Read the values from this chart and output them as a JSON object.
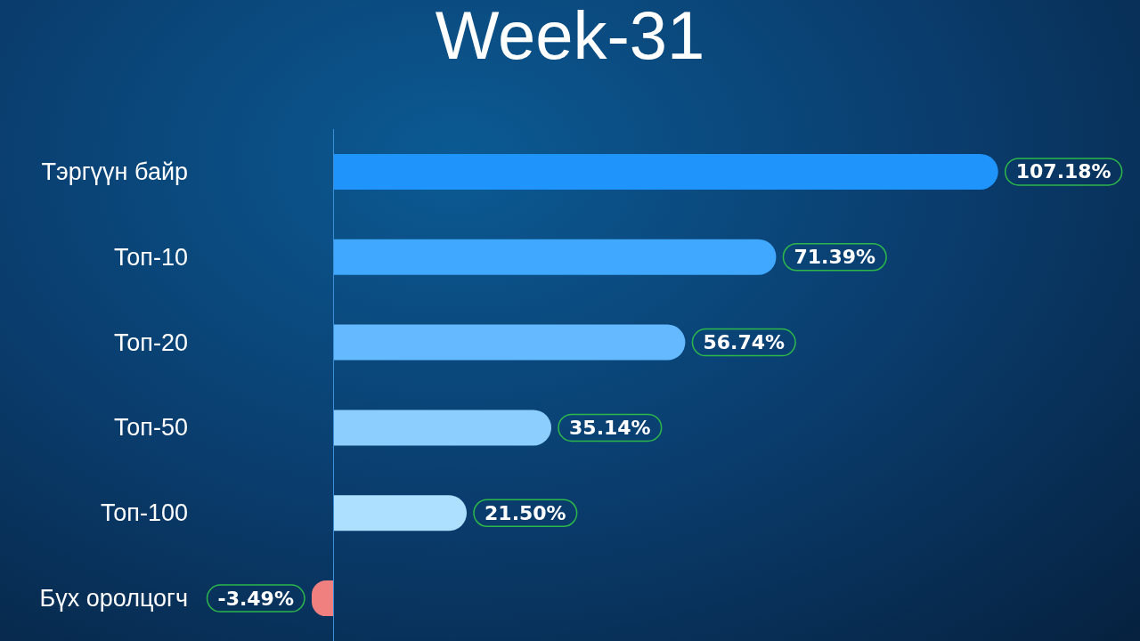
{
  "chart_data": {
    "type": "bar",
    "orientation": "horizontal",
    "title": "Week-31",
    "categories": [
      "Тэргүүн байр",
      "Топ-10",
      "Топ-20",
      "Топ-50",
      "Топ-100",
      "Бүх оролцогч"
    ],
    "values": [
      107.18,
      71.39,
      56.74,
      35.14,
      21.5,
      -3.49
    ],
    "value_labels": [
      "107.18%",
      "71.39%",
      "56.74%",
      "35.14%",
      "21.50%",
      "-3.49%"
    ],
    "colors": [
      "#1f95fb",
      "#40a9ff",
      "#64b9ff",
      "#8ccfff",
      "#ade0ff",
      "#f08080"
    ],
    "ref_lines": [
      {
        "axis": "x",
        "value": 0,
        "color": "#3a8fd8"
      }
    ]
  }
}
